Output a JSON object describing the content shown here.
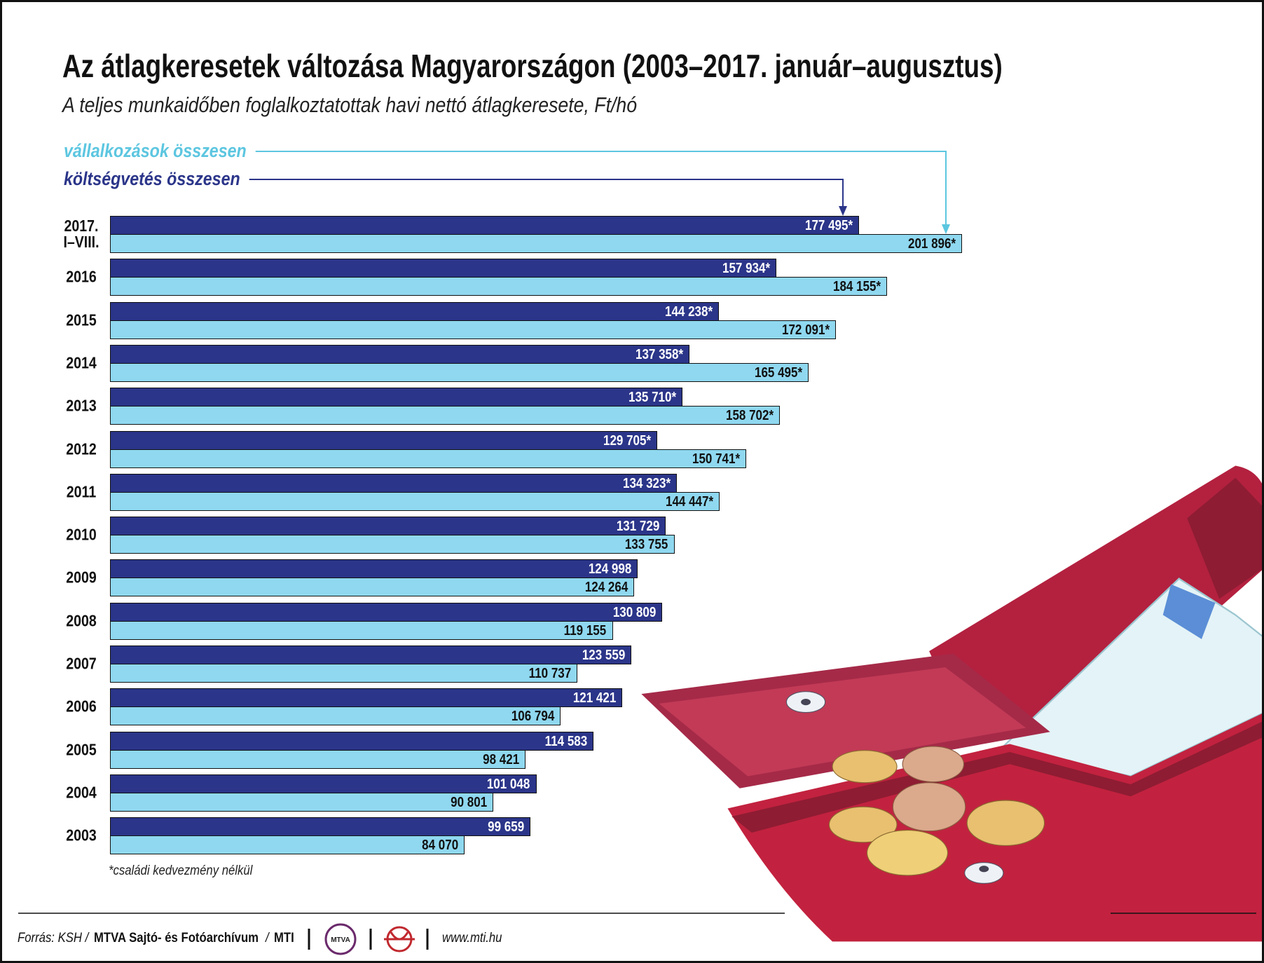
{
  "chart_data": {
    "type": "bar",
    "orientation": "horizontal",
    "title": "Az átlagkeresetek változása Magyarországon (2003–2017. január–augusztus)",
    "subtitle": "A teljes munkaidőben foglalkoztatottak havi nettó átlagkeresete, Ft/hó",
    "categories": [
      "2017.\nI–VIII.",
      "2016",
      "2015",
      "2014",
      "2013",
      "2012",
      "2011",
      "2010",
      "2009",
      "2008",
      "2007",
      "2006",
      "2005",
      "2004",
      "2003"
    ],
    "series": [
      {
        "name": "költségvetés összesen",
        "color": "#2b3589",
        "label_color": "#ffffff",
        "values": [
          177495,
          157934,
          144238,
          137358,
          135710,
          129705,
          134323,
          131729,
          124998,
          130809,
          123559,
          121421,
          114583,
          101048,
          99659
        ],
        "value_labels": [
          "177 495*",
          "157 934*",
          "144 238*",
          "137 358*",
          "135 710*",
          "129 705*",
          "134 323*",
          "131 729",
          "124 998",
          "130 809",
          "123 559",
          "121 421",
          "114 583",
          "101 048",
          "99 659"
        ]
      },
      {
        "name": "vállalkozások összesen",
        "color": "#8fd8f0",
        "label_color": "#111111",
        "legend_color": "#5cc6e0",
        "values": [
          201896,
          184155,
          172091,
          165495,
          158702,
          150741,
          144447,
          133755,
          124264,
          119155,
          110737,
          106794,
          98421,
          90801,
          84070
        ],
        "value_labels": [
          "201 896*",
          "184 155*",
          "172 091*",
          "165 495*",
          "158 702*",
          "150 741*",
          "144 447*",
          "133 755",
          "124 264",
          "119 155",
          "110 737",
          "106 794",
          "98 421",
          "90 801",
          "84 070"
        ]
      }
    ],
    "legend_order": [
      1,
      0
    ],
    "note": "*családi kedvezmény nélkül"
  },
  "footer": {
    "source_prefix": "Forrás: KSH /",
    "source_main": "MTVA Sajtó- és Fotóarchívum",
    "source_sep": "/",
    "source_end": "MTI",
    "logo": "MTVA",
    "url": "www.mti.hu"
  }
}
